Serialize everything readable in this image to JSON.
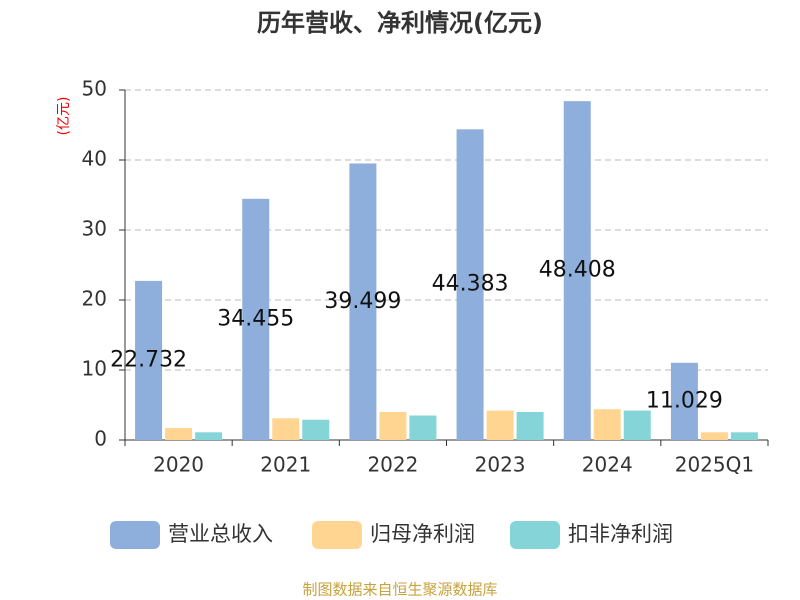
{
  "chart_data": {
    "type": "bar",
    "title": "历年营收、净利情况(亿元)",
    "y_label": "(亿元)",
    "categories": [
      "2020",
      "2021",
      "2022",
      "2023",
      "2024",
      "2025Q1"
    ],
    "series": [
      {
        "name": "营业总收入",
        "color": "#8eaedb",
        "values": [
          22.732,
          34.455,
          39.499,
          44.383,
          48.408,
          11.029
        ]
      },
      {
        "name": "归母净利润",
        "color": "#ffd591",
        "values": [
          1.7,
          3.1,
          4.0,
          4.2,
          4.4,
          1.1
        ]
      },
      {
        "name": "扣非净利润",
        "color": "#85d5d8",
        "values": [
          1.1,
          2.9,
          3.5,
          4.0,
          4.2,
          1.1
        ]
      }
    ],
    "ylim": [
      0,
      50
    ],
    "yticks": [
      0,
      10,
      20,
      30,
      40,
      50
    ],
    "grid": true,
    "source": "制图数据来自恒生聚源数据库"
  }
}
